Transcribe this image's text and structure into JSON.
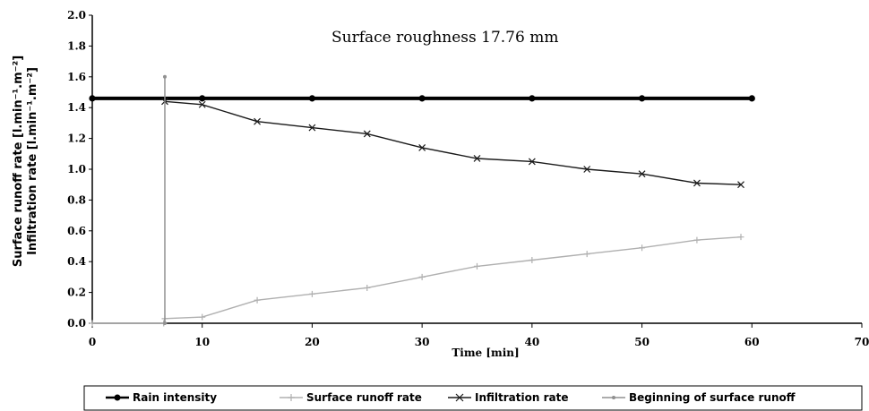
{
  "chart_data": {
    "type": "line",
    "annotation": "Surface roughness 17.76 mm",
    "xlabel": "Time [min]",
    "ylabel": [
      "Surface runoff rate [l.min⁻¹.m⁻²]",
      "Infiltration rate [l.min⁻¹.m⁻²]"
    ],
    "xlim": [
      0,
      70
    ],
    "ylim": [
      0,
      2.0
    ],
    "xticks": [
      "0",
      "10",
      "20",
      "30",
      "40",
      "50",
      "60",
      "70"
    ],
    "yticks": [
      "0.0",
      "0.2",
      "0.4",
      "0.6",
      "0.8",
      "1.0",
      "1.2",
      "1.4",
      "1.6",
      "1.8",
      "2.0"
    ],
    "legend_position": "bottom",
    "series": [
      {
        "name": "Rain intensity",
        "color": "#000000",
        "marker": "circle",
        "x": [
          0,
          10,
          20,
          30,
          40,
          50,
          60
        ],
        "y": [
          1.46,
          1.46,
          1.46,
          1.46,
          1.46,
          1.46,
          1.46
        ]
      },
      {
        "name": "Surface runoff rate",
        "color": "#b0b0b0",
        "marker": "plus",
        "x": [
          0,
          6.5,
          6.6,
          10,
          15,
          20,
          25,
          30,
          35,
          40,
          45,
          50,
          55,
          59
        ],
        "y": [
          0.0,
          0.0,
          0.03,
          0.04,
          0.15,
          0.19,
          0.23,
          0.3,
          0.37,
          0.41,
          0.45,
          0.49,
          0.54,
          0.56
        ]
      },
      {
        "name": "Infiltration rate",
        "color": "#1a1a1a",
        "marker": "x",
        "x": [
          6.6,
          10,
          15,
          20,
          25,
          30,
          35,
          40,
          45,
          50,
          55,
          59
        ],
        "y": [
          1.44,
          1.42,
          1.31,
          1.27,
          1.23,
          1.14,
          1.07,
          1.05,
          1.0,
          0.97,
          0.91,
          0.9
        ]
      },
      {
        "name": "Beginning of surface runoff",
        "color": "#909090",
        "marker": "dot",
        "x": [
          6.6,
          6.6
        ],
        "y": [
          0.0,
          1.6
        ]
      }
    ]
  }
}
